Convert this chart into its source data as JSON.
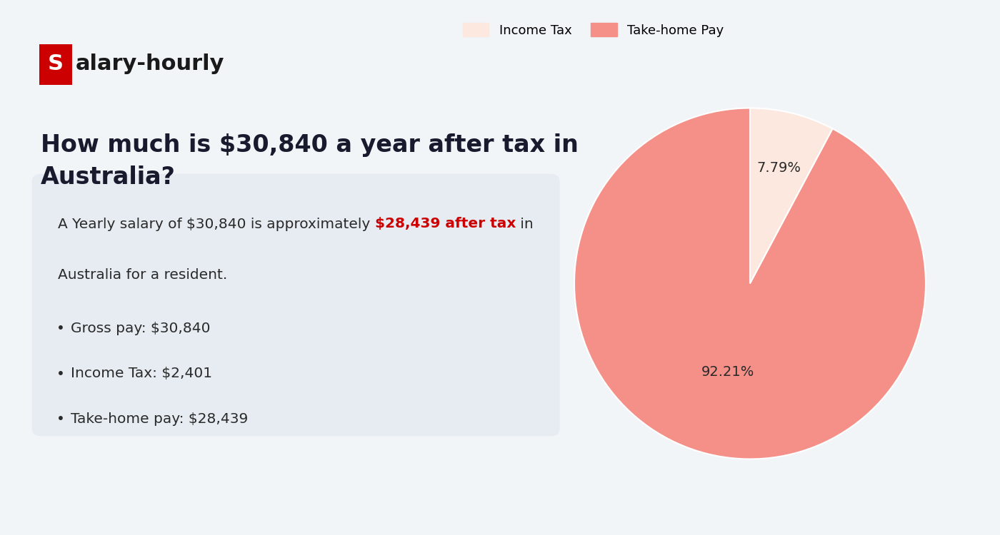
{
  "background_color": "#f2f5f8",
  "logo_box_color": "#cc0000",
  "logo_text_color": "#1a1a1a",
  "title_line1": "How much is $30,840 a year after tax in",
  "title_line2": "Australia?",
  "title_fontsize": 24,
  "title_color": "#1a1a2e",
  "box_bg_color": "#e6ecf2",
  "box_text_color": "#2a2a2a",
  "box_highlight_color": "#cc0000",
  "bullet_items": [
    "Gross pay: $30,840",
    "Income Tax: $2,401",
    "Take-home pay: $28,439"
  ],
  "bullet_fontsize": 14,
  "pie_values": [
    7.79,
    92.21
  ],
  "pie_labels": [
    "Income Tax",
    "Take-home Pay"
  ],
  "pie_colors": [
    "#fce8de",
    "#f59089"
  ],
  "pie_pct_labels": [
    "7.79%",
    "92.21%"
  ],
  "pie_text_color": "#2a2a2a",
  "legend_fontsize": 13,
  "pie_fontsize": 14
}
